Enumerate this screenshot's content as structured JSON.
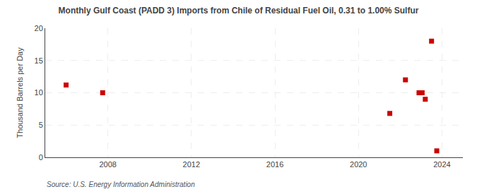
{
  "chart_data": {
    "type": "scatter",
    "title": "Monthly Gulf Coast (PADD 3) Imports from Chile of Residual Fuel Oil, 0.31 to 1.00% Sulfur",
    "ylabel": "Thousand Barrels per Day",
    "annotations": [
      "Source: U.S. Energy Information Administration"
    ],
    "x": [
      2006.0,
      2007.75,
      2021.5,
      2022.25,
      2022.9,
      2023.05,
      2023.2,
      2023.5,
      2023.75
    ],
    "values": [
      11.2,
      10.0,
      6.8,
      12.0,
      10.0,
      10.0,
      9.0,
      18.0,
      1.0
    ],
    "color": "#cc0000",
    "marker": "square",
    "xlim": [
      2005,
      2025
    ],
    "ylim": [
      0,
      20
    ],
    "xticks": [
      2008,
      2012,
      2016,
      2020,
      2024
    ],
    "yticks": [
      0,
      5,
      10,
      15,
      20
    ],
    "grid": true
  }
}
